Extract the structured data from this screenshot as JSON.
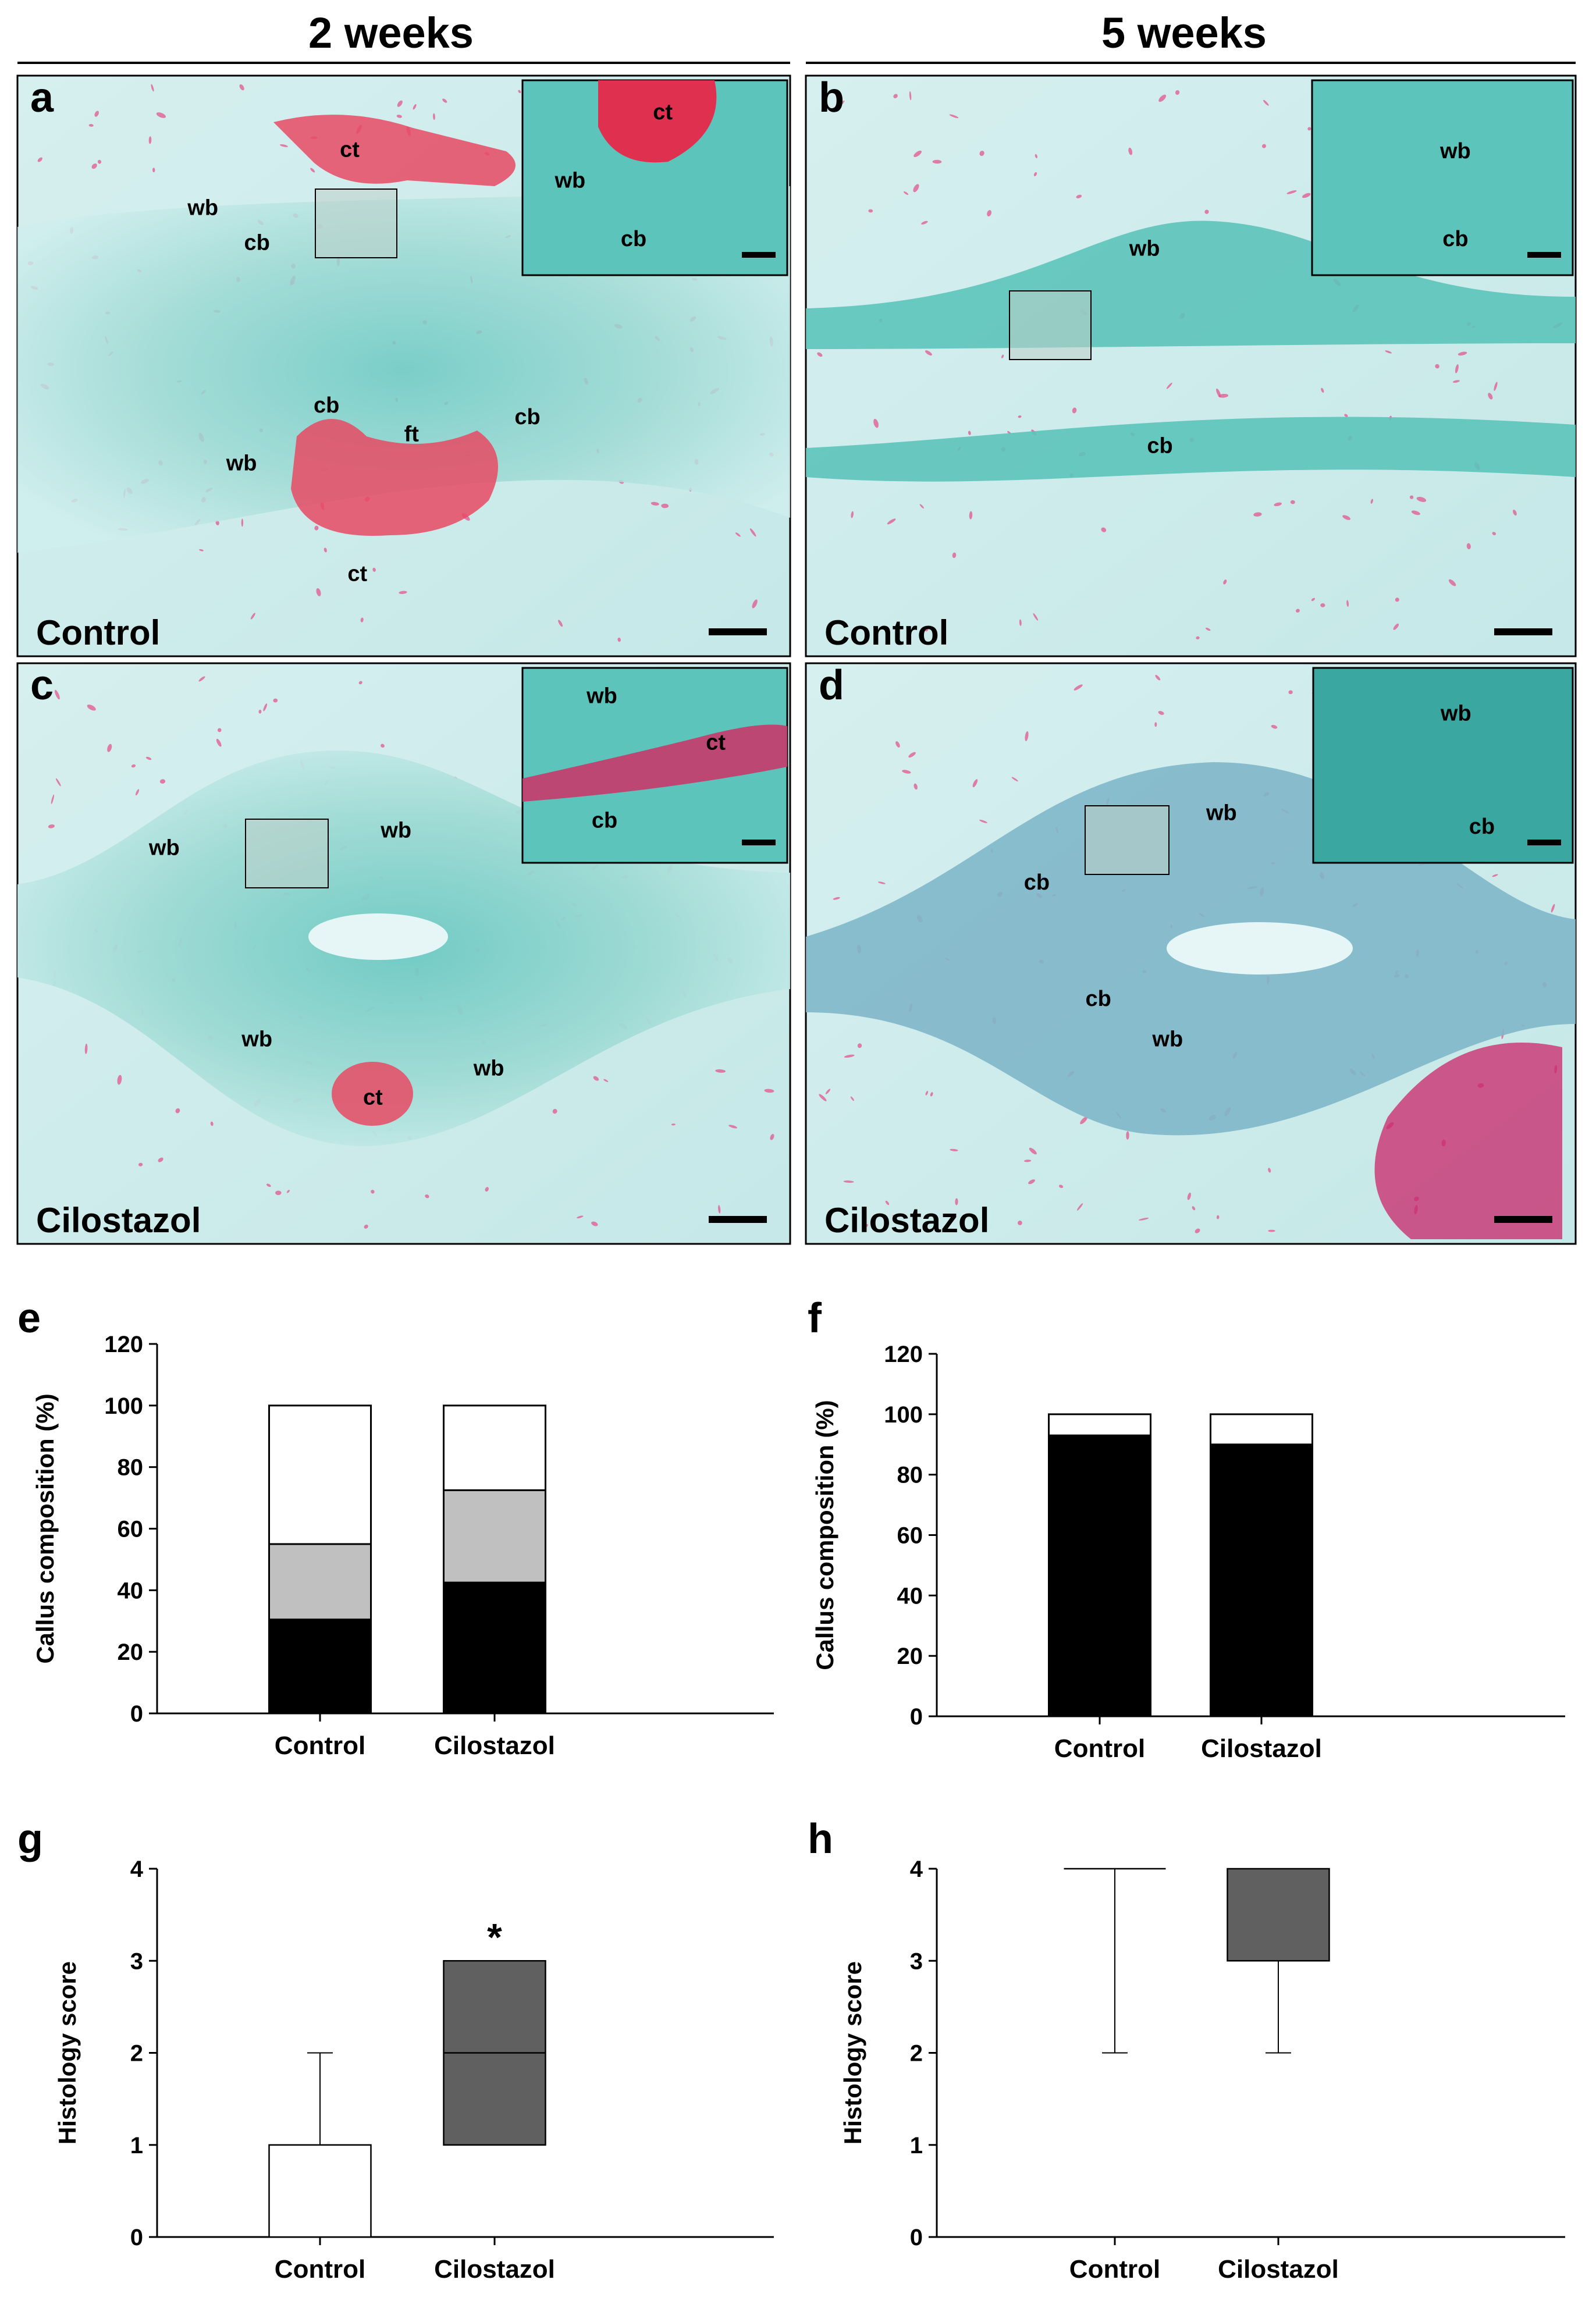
{
  "columns": [
    "2 weeks",
    "5 weeks"
  ],
  "photo_panels": [
    {
      "letter": "a",
      "group": "Control",
      "labels": [
        {
          "text": "ct",
          "u": 0.43,
          "v": 0.14
        },
        {
          "text": "wb",
          "u": 0.24,
          "v": 0.24
        },
        {
          "text": "cb",
          "u": 0.31,
          "v": 0.3
        },
        {
          "text": "cb",
          "u": 0.4,
          "v": 0.58
        },
        {
          "text": "ft",
          "u": 0.51,
          "v": 0.63
        },
        {
          "text": "cb",
          "u": 0.66,
          "v": 0.6
        },
        {
          "text": "wb",
          "u": 0.29,
          "v": 0.68
        },
        {
          "text": "ct",
          "u": 0.44,
          "v": 0.87
        }
      ],
      "inset_labels": [
        {
          "text": "ct",
          "u": 0.53,
          "v": 0.2
        },
        {
          "text": "wb",
          "u": 0.18,
          "v": 0.55
        },
        {
          "text": "cb",
          "u": 0.42,
          "v": 0.85
        }
      ]
    },
    {
      "letter": "b",
      "group": "Control",
      "labels": [
        {
          "text": "wb",
          "u": 0.44,
          "v": 0.31
        },
        {
          "text": "cb",
          "u": 0.46,
          "v": 0.65
        }
      ],
      "inset_labels": [
        {
          "text": "wb",
          "u": 0.55,
          "v": 0.4
        },
        {
          "text": "cb",
          "u": 0.55,
          "v": 0.85
        }
      ]
    },
    {
      "letter": "c",
      "group": "Cilostazol",
      "labels": [
        {
          "text": "wb",
          "u": 0.19,
          "v": 0.33
        },
        {
          "text": "wb",
          "u": 0.49,
          "v": 0.3
        },
        {
          "text": "wb",
          "u": 0.31,
          "v": 0.66
        },
        {
          "text": "ct",
          "u": 0.46,
          "v": 0.76
        },
        {
          "text": "wb",
          "u": 0.61,
          "v": 0.71
        }
      ],
      "inset_labels": [
        {
          "text": "wb",
          "u": 0.3,
          "v": 0.18
        },
        {
          "text": "ct",
          "u": 0.73,
          "v": 0.42
        },
        {
          "text": "cb",
          "u": 0.31,
          "v": 0.82
        }
      ]
    },
    {
      "letter": "d",
      "group": "Cilostazol",
      "labels": [
        {
          "text": "wb",
          "u": 0.54,
          "v": 0.27
        },
        {
          "text": "cb",
          "u": 0.3,
          "v": 0.39
        },
        {
          "text": "cb",
          "u": 0.38,
          "v": 0.59
        },
        {
          "text": "wb",
          "u": 0.47,
          "v": 0.66
        }
      ],
      "inset_labels": [
        {
          "text": "wb",
          "u": 0.55,
          "v": 0.27
        },
        {
          "text": "cb",
          "u": 0.65,
          "v": 0.85
        }
      ]
    }
  ],
  "chart_data": [
    {
      "letter": "e",
      "type": "bar",
      "stacked": true,
      "categories": [
        "Control",
        "Cilostazol"
      ],
      "series": [
        {
          "color": "#000000",
          "values": [
            30.5,
            42.5
          ]
        },
        {
          "color": "#c0c0c0",
          "values": [
            24.5,
            30.0
          ]
        },
        {
          "color": "#ffffff",
          "values": [
            45.0,
            27.5
          ]
        }
      ],
      "ylabel": "Callus composition (%)",
      "ylim": [
        0,
        120
      ],
      "yticks": [
        0,
        20,
        40,
        60,
        80,
        100,
        120
      ]
    },
    {
      "letter": "f",
      "type": "bar",
      "stacked": true,
      "categories": [
        "Control",
        "Cilostazol"
      ],
      "series": [
        {
          "color": "#000000",
          "values": [
            93,
            90
          ]
        },
        {
          "color": "#ffffff",
          "values": [
            7,
            10
          ]
        }
      ],
      "ylabel": "Callus composition (%)",
      "ylim": [
        0,
        120
      ],
      "yticks": [
        0,
        20,
        40,
        60,
        80,
        100,
        120
      ]
    },
    {
      "letter": "g",
      "type": "box",
      "categories": [
        "Control",
        "Cilostazol"
      ],
      "boxes": [
        {
          "min": 0,
          "q1": 0,
          "median": 0,
          "q3": 1,
          "max": 2,
          "color": "#ffffff"
        },
        {
          "min": 1,
          "q1": 1,
          "median": 2,
          "q3": 3,
          "max": 3,
          "color": "#606060"
        }
      ],
      "annotations": [
        {
          "category": "Cilostazol",
          "text": "*"
        }
      ],
      "ylabel": "Histology score",
      "ylim": [
        0,
        4
      ],
      "yticks": [
        0,
        1,
        2,
        3,
        4
      ]
    },
    {
      "letter": "h",
      "type": "box",
      "categories": [
        "Control",
        "Cilostazol"
      ],
      "boxes": [
        {
          "min": 2,
          "q1": 4,
          "median": 4,
          "q3": 4,
          "max": 4,
          "color": "#ffffff"
        },
        {
          "min": 2,
          "q1": 3,
          "median": 3,
          "q3": 4,
          "max": 4,
          "color": "#606060"
        }
      ],
      "annotations": [],
      "ylabel": "Histology score",
      "ylim": [
        0,
        4
      ],
      "yticks": [
        0,
        1,
        2,
        3,
        4
      ]
    }
  ]
}
